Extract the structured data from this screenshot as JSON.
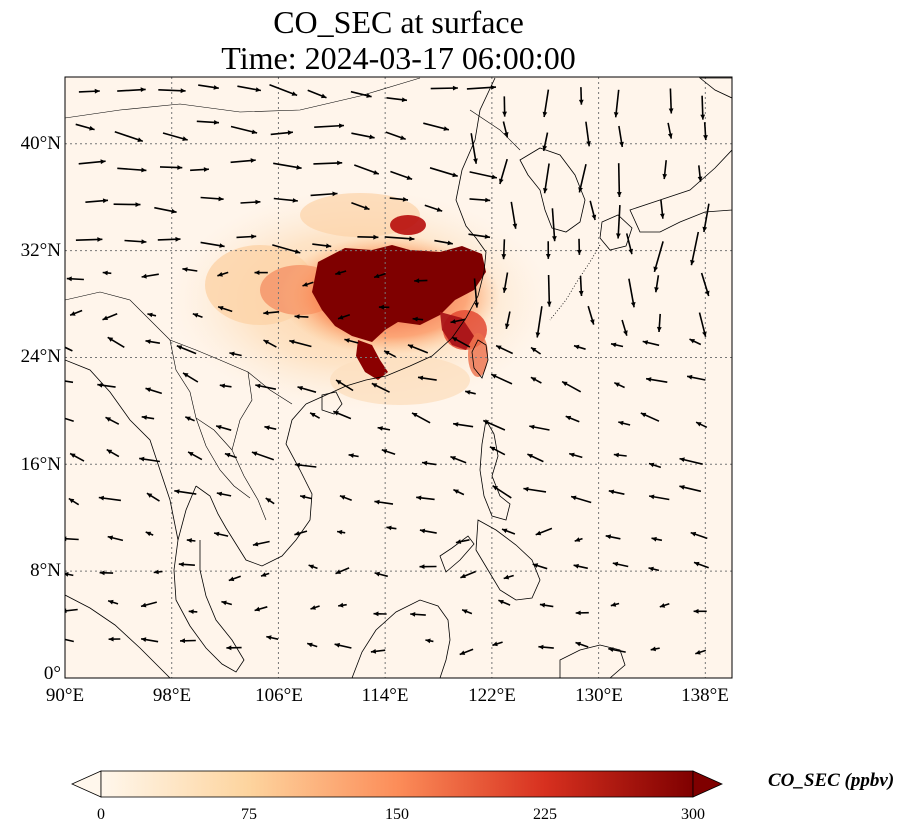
{
  "title": {
    "line1": "CO_SEC at surface",
    "line2": "Time: 2024-03-17 06:00:00"
  },
  "map": {
    "projection": "PlateCarree",
    "lon_range": [
      90,
      140
    ],
    "lat_range": [
      0,
      45
    ],
    "lat_ticks": [
      {
        "value": 0,
        "label": "0°"
      },
      {
        "value": 8,
        "label": "8°N"
      },
      {
        "value": 16,
        "label": "16°N"
      },
      {
        "value": 24,
        "label": "24°N"
      },
      {
        "value": 32,
        "label": "32°N"
      },
      {
        "value": 40,
        "label": "40°N"
      }
    ],
    "lon_ticks": [
      {
        "value": 90,
        "label": "90°E"
      },
      {
        "value": 98,
        "label": "98°E"
      },
      {
        "value": 106,
        "label": "106°E"
      },
      {
        "value": 114,
        "label": "114°E"
      },
      {
        "value": 122,
        "label": "122°E"
      },
      {
        "value": 130,
        "label": "130°E"
      },
      {
        "value": 138,
        "label": "138°E"
      }
    ],
    "gridlines": true,
    "plume_core_center": {
      "lon": 114,
      "lat": 29
    },
    "wind_vectors_shown": true
  },
  "colorbar": {
    "label": "CO_SEC (ppbv)",
    "ticks": [
      "0",
      "75",
      "150",
      "225",
      "300"
    ],
    "range": [
      0,
      300
    ],
    "colormap": "OrRd",
    "colors": [
      "#fff7ec",
      "#fdd49e",
      "#fc8d59",
      "#d7301f",
      "#7f0000"
    ],
    "extend": "both"
  },
  "chart_data": {
    "type": "heatmap",
    "title": "CO_SEC at surface Time: 2024-03-17 06:00:00",
    "xlim": [
      90,
      140
    ],
    "ylim": [
      0,
      45
    ],
    "value_range": [
      0,
      300
    ],
    "units": "ppbv",
    "hotspots": [
      {
        "lon": 114,
        "lat": 29.5,
        "value": 300
      },
      {
        "lon": 118,
        "lat": 30.5,
        "value": 280
      },
      {
        "lon": 113,
        "lat": 23,
        "value": 260
      },
      {
        "lon": 120,
        "lat": 26,
        "value": 180
      },
      {
        "lon": 121,
        "lat": 24,
        "value": 150
      },
      {
        "lon": 108,
        "lat": 29,
        "value": 120
      },
      {
        "lon": 103,
        "lat": 30,
        "value": 50
      }
    ]
  }
}
